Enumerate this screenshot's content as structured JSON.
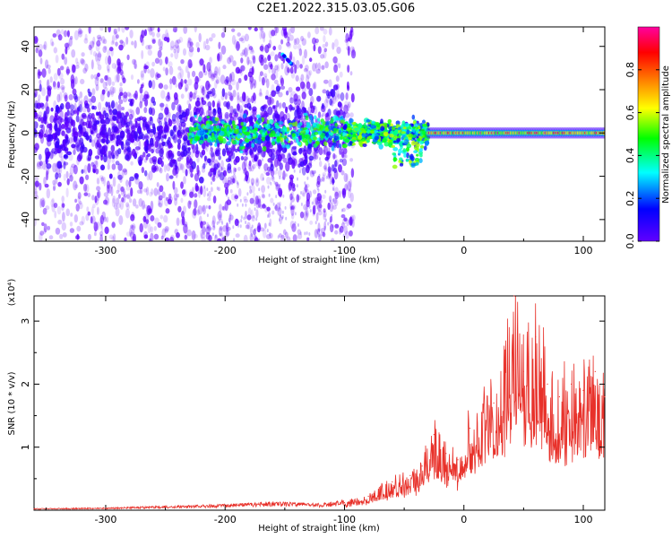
{
  "title": "C2E1.2022.315.03.05.G06",
  "colors": {
    "signal": "#e8312a",
    "axis": "#000000"
  },
  "chart_data": [
    {
      "type": "heatmap",
      "title": "C2E1.2022.315.03.05.G06",
      "xlabel": "Height of straight line (km)",
      "ylabel": "Frequency (Hz)",
      "xlim": [
        -360,
        118
      ],
      "ylim": [
        -50,
        49
      ],
      "xticks": [
        "-300",
        "-200",
        "-100",
        "0",
        "100"
      ],
      "xtick_values": [
        -300,
        -200,
        -100,
        0,
        100
      ],
      "yticks": [
        "-40",
        "-20",
        "0",
        "20",
        "40"
      ],
      "ytick_values": [
        -40,
        -20,
        0,
        20,
        40
      ],
      "colorbar": {
        "label": "Normalized spectral amplitude",
        "range": [
          0,
          1
        ],
        "ticks": [
          "0.0",
          "0.2",
          "0.4",
          "0.6",
          "0.8"
        ],
        "tick_values": [
          0.0,
          0.2,
          0.4,
          0.6,
          0.8
        ],
        "colormap": [
          "#7000ff",
          "#0000ff",
          "#00ffff",
          "#00ff00",
          "#ffff00",
          "#ff8000",
          "#ff0040",
          "#ff00a0"
        ]
      },
      "features": {
        "carrier_frequency_hz": 0,
        "noise_region_x": [
          -360,
          -100
        ],
        "transition_region_x": [
          -100,
          -30
        ],
        "clean_carrier_x": [
          -30,
          118
        ],
        "side_feature": {
          "x": -148,
          "y": 34
        }
      }
    },
    {
      "type": "line",
      "xlabel": "Height of straight line (km)",
      "ylabel": "SNR (10 * v/v)",
      "yscale_note": "(x10⁴)",
      "xlim": [
        -360,
        118
      ],
      "ylim": [
        0,
        3.4
      ],
      "xticks": [
        "-300",
        "-200",
        "-100",
        "0",
        "100"
      ],
      "xtick_values": [
        -300,
        -200,
        -100,
        0,
        100
      ],
      "yticks": [
        "1",
        "2",
        "3"
      ],
      "ytick_values": [
        1,
        2,
        3
      ],
      "series": [
        {
          "color": "#e8312a",
          "x": [
            -360,
            -300,
            -250,
            -200,
            -160,
            -120,
            -100,
            -80,
            -60,
            -45,
            -35,
            -25,
            -15,
            -5,
            5,
            15,
            25,
            35,
            42,
            50,
            60,
            70,
            80,
            90,
            100,
            110,
            118
          ],
          "y": [
            0.02,
            0.03,
            0.05,
            0.07,
            0.1,
            0.08,
            0.12,
            0.22,
            0.45,
            0.55,
            0.7,
            1.2,
            0.9,
            0.8,
            1.3,
            1.55,
            1.7,
            2.3,
            3.4,
            2.2,
            2.75,
            2.0,
            1.8,
            2.0,
            1.9,
            2.2,
            1.8
          ]
        }
      ]
    }
  ]
}
